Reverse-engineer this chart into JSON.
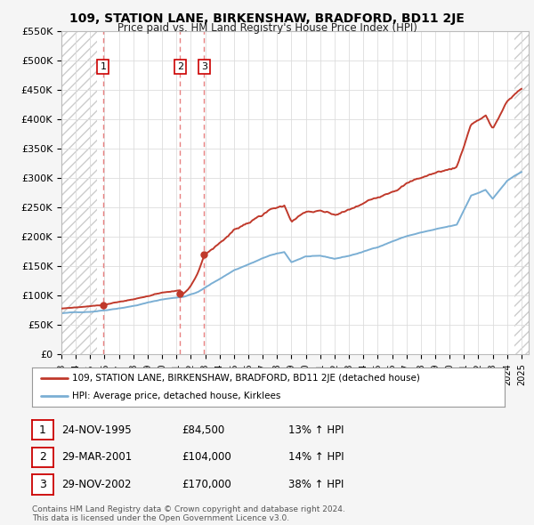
{
  "title": "109, STATION LANE, BIRKENSHAW, BRADFORD, BD11 2JE",
  "subtitle": "Price paid vs. HM Land Registry's House Price Index (HPI)",
  "ylim": [
    0,
    550000
  ],
  "yticks": [
    0,
    50000,
    100000,
    150000,
    200000,
    250000,
    300000,
    350000,
    400000,
    450000,
    500000,
    550000
  ],
  "ytick_labels": [
    "£0",
    "£50K",
    "£100K",
    "£150K",
    "£200K",
    "£250K",
    "£300K",
    "£350K",
    "£400K",
    "£450K",
    "£500K",
    "£550K"
  ],
  "hpi_color": "#7bafd4",
  "price_color": "#c0392b",
  "sale_color": "#c0392b",
  "vline_color": "#e88080",
  "background_color": "#f5f5f5",
  "plot_bg_color": "#ffffff",
  "sales": [
    {
      "date_num": 1995.9,
      "price": 84500,
      "label": "1"
    },
    {
      "date_num": 2001.25,
      "price": 104000,
      "label": "2"
    },
    {
      "date_num": 2002.92,
      "price": 170000,
      "label": "3"
    }
  ],
  "legend_entries": [
    "109, STATION LANE, BIRKENSHAW, BRADFORD, BD11 2JE (detached house)",
    "HPI: Average price, detached house, Kirklees"
  ],
  "table_rows": [
    {
      "num": "1",
      "date": "24-NOV-1995",
      "price": "£84,500",
      "hpi": "13% ↑ HPI"
    },
    {
      "num": "2",
      "date": "29-MAR-2001",
      "price": "£104,000",
      "hpi": "14% ↑ HPI"
    },
    {
      "num": "3",
      "date": "29-NOV-2002",
      "price": "£170,000",
      "hpi": "38% ↑ HPI"
    }
  ],
  "footer": "Contains HM Land Registry data © Crown copyright and database right 2024.\nThis data is licensed under the Open Government Licence v3.0."
}
